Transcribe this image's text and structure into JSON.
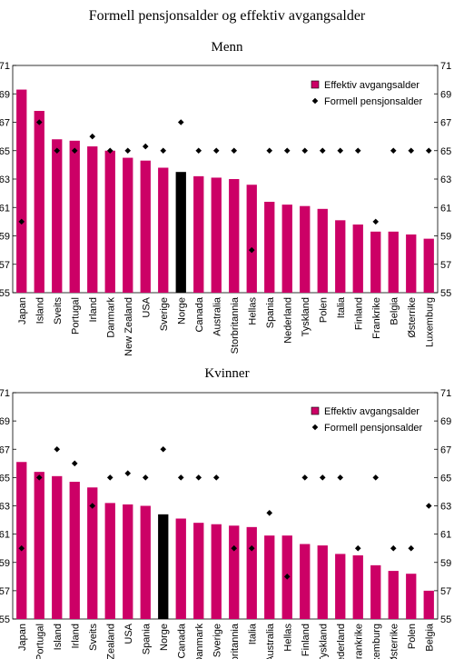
{
  "title": "Formell pensjonsalder og effektiv avgangsalder",
  "colors": {
    "bar": "#cc0066",
    "highlight": "#000000",
    "marker": "#000000"
  },
  "chart_data": [
    {
      "type": "bar",
      "subtitle": "Menn",
      "categories": [
        "Japan",
        "Island",
        "Sveits",
        "Portugal",
        "Irland",
        "Danmark",
        "New Zealand",
        "USA",
        "Sverige",
        "Norge",
        "Canada",
        "Australia",
        "Storbritannia",
        "Hellas",
        "Spania",
        "Nederland",
        "Tyskland",
        "Polen",
        "Italia",
        "Finland",
        "Frankrike",
        "Belgia",
        "Østerrike",
        "Luxemburg"
      ],
      "highlight": "Norge",
      "series": [
        {
          "name": "Effektiv avgangsalder",
          "kind": "bar",
          "values": [
            69.3,
            67.8,
            65.8,
            65.7,
            65.3,
            65.0,
            64.5,
            64.3,
            63.8,
            63.5,
            63.2,
            63.1,
            63.0,
            62.6,
            61.4,
            61.2,
            61.1,
            60.9,
            60.1,
            59.8,
            59.3,
            59.3,
            59.1,
            58.8
          ]
        },
        {
          "name": "Formell pensjonsalder",
          "kind": "marker",
          "values": [
            60,
            67,
            65,
            65,
            66,
            65,
            65,
            65.3,
            65,
            67,
            65,
            65,
            65,
            58,
            65,
            65,
            65,
            65,
            65,
            65,
            60,
            65,
            65,
            65
          ]
        }
      ],
      "ylim": [
        55,
        71
      ],
      "yticks": [
        "55",
        "57",
        "59",
        "61",
        "63",
        "65",
        "67",
        "69",
        "71"
      ],
      "legend": "top-right"
    },
    {
      "type": "bar",
      "subtitle": "Kvinner",
      "categories": [
        "Japan",
        "Portugal",
        "Island",
        "Irland",
        "Sveits",
        "New Zealand",
        "USA",
        "Spania",
        "Norge",
        "Canada",
        "Danmark",
        "Sverige",
        "Storbritannia",
        "Italia",
        "Australia",
        "Hellas",
        "Finland",
        "Tyskland",
        "Nederland",
        "Frankrike",
        "Luxemburg",
        "Østerrike",
        "Polen",
        "Belgia"
      ],
      "highlight": "Norge",
      "series": [
        {
          "name": "Effektiv avgangsalder",
          "kind": "bar",
          "values": [
            66.1,
            65.4,
            65.1,
            64.7,
            64.3,
            63.2,
            63.1,
            63.0,
            62.4,
            62.1,
            61.8,
            61.7,
            61.6,
            61.5,
            60.9,
            60.9,
            60.3,
            60.2,
            59.6,
            59.5,
            58.8,
            58.4,
            58.2,
            57.0
          ]
        },
        {
          "name": "Formell pensjonsalder",
          "kind": "marker",
          "values": [
            60,
            65,
            67,
            66,
            63,
            65,
            65.3,
            65,
            67,
            65,
            65,
            65,
            60,
            60,
            62.5,
            58,
            65,
            65,
            65,
            60,
            65,
            60,
            60,
            63
          ]
        }
      ],
      "ylim": [
        55,
        71
      ],
      "yticks": [
        "55",
        "57",
        "59",
        "61",
        "63",
        "65",
        "67",
        "69",
        "71"
      ],
      "legend": "top-right"
    }
  ]
}
